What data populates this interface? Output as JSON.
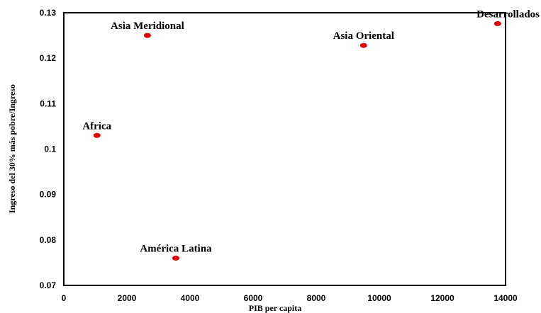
{
  "chart_data": {
    "type": "scatter",
    "xlabel": "PIB per capita",
    "ylabel": "Ingreso del 30% más pobre/Ingreso",
    "xlim": [
      0,
      14000
    ],
    "ylim": [
      0.07,
      0.13
    ],
    "x_ticks": [
      "0",
      "2000",
      "4000",
      "6000",
      "8000",
      "10000",
      "12000",
      "14000"
    ],
    "y_ticks": [
      "0.07",
      "0.08",
      "0.09",
      "0.1",
      "0.11",
      "0.12",
      "0.13"
    ],
    "x_tick_values": [
      0,
      2000,
      4000,
      6000,
      8000,
      10000,
      12000,
      14000
    ],
    "y_tick_values": [
      0.07,
      0.08,
      0.09,
      0.1,
      0.11,
      0.12,
      0.13
    ],
    "grid": false,
    "legend": "none",
    "marker_color": "#e00000",
    "points": [
      {
        "label": "Africa",
        "x": 1050,
        "y": 0.103
      },
      {
        "label": "Asia Meridional",
        "x": 2650,
        "y": 0.125
      },
      {
        "label": "América Latina",
        "x": 3550,
        "y": 0.076
      },
      {
        "label": "Asia Oriental",
        "x": 9500,
        "y": 0.1228
      },
      {
        "label": "Desarrollados",
        "x": 13750,
        "y": 0.1276
      }
    ]
  }
}
